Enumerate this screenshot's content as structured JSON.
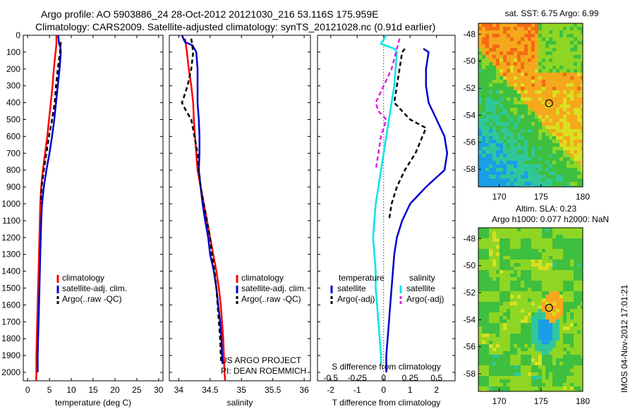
{
  "header": {
    "title_line1": "Argo profile: AO 5903886_24 28-Oct-2012 20121030_216 53.116S 175.959E",
    "title_line2": "Climatology: CARS2009. Satellite-adjusted climatology: synTS_20121028.nc (0.91d earlier)"
  },
  "credit": {
    "line1": "US ARGO PROJECT",
    "line2": "PI: DEAN ROEMMICH"
  },
  "timestamp": "IMOS 04-Nov-2012 17:01:21",
  "colors": {
    "climatology": "#ff0000",
    "satellite": "#0000cc",
    "argo": "#000000",
    "satellite_s": "#00e5e5",
    "argo_s": "#e020e0"
  },
  "chart_data": [
    {
      "type": "line",
      "xlabel": "temperature (deg C)",
      "ylabel": "",
      "xlim": [
        -1,
        31
      ],
      "ylim": [
        2050,
        0
      ],
      "xticks": [
        0,
        5,
        10,
        15,
        20,
        25,
        30
      ],
      "yticks": [
        0,
        100,
        200,
        300,
        400,
        500,
        600,
        700,
        800,
        900,
        1000,
        1100,
        1200,
        1300,
        1400,
        1500,
        1600,
        1700,
        1800,
        1900,
        2000
      ],
      "legend_position": "lower-center",
      "series": [
        {
          "name": "climatology",
          "color": "#ff0000",
          "dash": "",
          "points": [
            [
              6.6,
              0
            ],
            [
              6.6,
              50
            ],
            [
              6.4,
              100
            ],
            [
              6.0,
              200
            ],
            [
              5.7,
              300
            ],
            [
              5.3,
              400
            ],
            [
              4.9,
              500
            ],
            [
              4.5,
              600
            ],
            [
              4.0,
              700
            ],
            [
              3.5,
              800
            ],
            [
              3.1,
              900
            ],
            [
              2.9,
              1000
            ],
            [
              2.8,
              1100
            ],
            [
              2.7,
              1200
            ],
            [
              2.6,
              1300
            ],
            [
              2.5,
              1400
            ],
            [
              2.4,
              1500
            ],
            [
              2.3,
              1600
            ],
            [
              2.2,
              1700
            ],
            [
              2.1,
              1800
            ],
            [
              2.0,
              1900
            ],
            [
              2.0,
              2000
            ],
            [
              1.95,
              2050
            ]
          ]
        },
        {
          "name": "satellite-adj. clim.",
          "color": "#0000cc",
          "dash": "",
          "points": [
            [
              7.0,
              0
            ],
            [
              7.2,
              50
            ],
            [
              7.5,
              70
            ],
            [
              7.6,
              100
            ],
            [
              7.3,
              200
            ],
            [
              6.9,
              300
            ],
            [
              6.5,
              400
            ],
            [
              6.1,
              500
            ],
            [
              5.6,
              600
            ],
            [
              5.0,
              700
            ],
            [
              4.3,
              800
            ],
            [
              3.7,
              900
            ],
            [
              3.3,
              1000
            ],
            [
              3.1,
              1100
            ],
            [
              3.0,
              1200
            ],
            [
              2.9,
              1300
            ],
            [
              2.8,
              1400
            ],
            [
              2.7,
              1500
            ],
            [
              2.6,
              1600
            ],
            [
              2.5,
              1700
            ],
            [
              2.4,
              1800
            ],
            [
              2.3,
              1900
            ],
            [
              2.3,
              2000
            ]
          ]
        },
        {
          "name": "Argo(..raw -QC)",
          "color": "#000000",
          "dash": "6,4",
          "points": [
            [
              7.6,
              40
            ],
            [
              7.4,
              100
            ],
            [
              6.9,
              200
            ],
            [
              6.5,
              300
            ],
            [
              6.2,
              400
            ],
            [
              5.6,
              500
            ],
            [
              4.9,
              600
            ],
            [
              4.3,
              700
            ],
            [
              3.7,
              800
            ],
            [
              3.2,
              900
            ],
            [
              3.0,
              1000
            ]
          ]
        }
      ]
    },
    {
      "type": "line",
      "xlabel": "salinity",
      "ylabel": "",
      "xlim": [
        33.85,
        36.1
      ],
      "ylim": [
        2050,
        0
      ],
      "xticks": [
        34,
        34.5,
        35,
        35.5,
        36
      ],
      "legend_position": "lower-right",
      "series": [
        {
          "name": "climatology",
          "color": "#ff0000",
          "dash": "",
          "points": [
            [
              34.1,
              20
            ],
            [
              34.13,
              100
            ],
            [
              34.16,
              200
            ],
            [
              34.2,
              300
            ],
            [
              34.23,
              400
            ],
            [
              34.24,
              500
            ],
            [
              34.26,
              600
            ],
            [
              34.28,
              700
            ],
            [
              34.3,
              800
            ],
            [
              34.35,
              900
            ],
            [
              34.4,
              1000
            ],
            [
              34.45,
              1100
            ],
            [
              34.5,
              1200
            ],
            [
              34.55,
              1300
            ],
            [
              34.6,
              1400
            ],
            [
              34.64,
              1500
            ],
            [
              34.67,
              1600
            ],
            [
              34.69,
              1700
            ],
            [
              34.71,
              1800
            ],
            [
              34.72,
              1900
            ],
            [
              34.73,
              2000
            ],
            [
              34.74,
              2050
            ]
          ]
        },
        {
          "name": "satellite-adj. clim.",
          "color": "#0000cc",
          "dash": "",
          "points": [
            [
              34.05,
              0
            ],
            [
              34.1,
              40
            ],
            [
              34.22,
              60
            ],
            [
              34.28,
              100
            ],
            [
              34.3,
              200
            ],
            [
              34.3,
              300
            ],
            [
              34.3,
              400
            ],
            [
              34.32,
              500
            ],
            [
              34.33,
              600
            ],
            [
              34.33,
              700
            ],
            [
              34.32,
              800
            ],
            [
              34.35,
              900
            ],
            [
              34.38,
              1000
            ],
            [
              34.42,
              1100
            ],
            [
              34.47,
              1200
            ],
            [
              34.5,
              1300
            ],
            [
              34.56,
              1400
            ],
            [
              34.6,
              1500
            ],
            [
              34.63,
              1600
            ],
            [
              34.66,
              1700
            ],
            [
              34.68,
              1800
            ],
            [
              34.69,
              1900
            ],
            [
              34.7,
              1950
            ]
          ]
        },
        {
          "name": "Argo(..raw -QC)",
          "color": "#000000",
          "dash": "6,4",
          "points": [
            [
              34.2,
              20
            ],
            [
              34.23,
              100
            ],
            [
              34.2,
              200
            ],
            [
              34.14,
              300
            ],
            [
              34.07,
              380
            ],
            [
              34.05,
              400
            ],
            [
              34.12,
              450
            ],
            [
              34.2,
              500
            ],
            [
              34.25,
              600
            ],
            [
              34.3,
              700
            ],
            [
              34.32,
              800
            ],
            [
              34.35,
              900
            ],
            [
              34.4,
              1000
            ],
            [
              34.45,
              1100
            ],
            [
              34.5,
              1200
            ],
            [
              34.53,
              1300
            ],
            [
              34.57,
              1400
            ],
            [
              34.6,
              1500
            ],
            [
              34.62,
              1600
            ],
            [
              34.64,
              1700
            ],
            [
              34.66,
              1800
            ],
            [
              34.67,
              1900
            ],
            [
              34.68,
              1950
            ]
          ]
        }
      ]
    },
    {
      "type": "line",
      "xlabel": "T difference from climatology",
      "secondary_xlabel": "S difference from climatology",
      "ylabel": "",
      "xlim": [
        -2.5,
        2.7
      ],
      "ylim": [
        2050,
        0
      ],
      "xticks": [
        -2,
        -1,
        0,
        1,
        2
      ],
      "secondary_xticks": [
        "-0.5",
        "-0.25",
        "0",
        "0.25",
        "0.5"
      ],
      "legend_position": "lower-center",
      "legend_groups": [
        "temperature",
        "salinity"
      ],
      "series": [
        {
          "name": "satellite",
          "group": "temperature",
          "color": "#0000cc",
          "dash": "",
          "points": [
            [
              1.5,
              80
            ],
            [
              1.7,
              100
            ],
            [
              1.6,
              200
            ],
            [
              1.6,
              300
            ],
            [
              1.7,
              400
            ],
            [
              2.0,
              500
            ],
            [
              2.3,
              600
            ],
            [
              2.4,
              700
            ],
            [
              2.3,
              800
            ],
            [
              1.6,
              900
            ],
            [
              1.0,
              1000
            ],
            [
              0.7,
              1100
            ],
            [
              0.5,
              1200
            ],
            [
              0.4,
              1300
            ],
            [
              0.35,
              1400
            ],
            [
              0.3,
              1500
            ],
            [
              0.25,
              1600
            ],
            [
              0.2,
              1700
            ],
            [
              0.15,
              1800
            ],
            [
              0.1,
              1900
            ],
            [
              0.1,
              2000
            ]
          ]
        },
        {
          "name": "Argo(-adj)",
          "group": "temperature",
          "color": "#000000",
          "dash": "6,4",
          "points": [
            [
              0.8,
              80
            ],
            [
              0.7,
              100
            ],
            [
              0.6,
              200
            ],
            [
              0.5,
              300
            ],
            [
              0.4,
              400
            ],
            [
              1.0,
              500
            ],
            [
              1.6,
              550
            ],
            [
              1.2,
              700
            ],
            [
              0.8,
              800
            ],
            [
              0.5,
              900
            ],
            [
              0.3,
              1000
            ],
            [
              0.2,
              1100
            ]
          ]
        },
        {
          "name": "satellite",
          "group": "salinity",
          "color": "#00e5e5",
          "dash": "",
          "points": [
            [
              0.1,
              0
            ],
            [
              -0.1,
              50
            ],
            [
              0.4,
              80
            ],
            [
              0.5,
              100
            ],
            [
              0.45,
              200
            ],
            [
              0.4,
              300
            ],
            [
              0.3,
              400
            ],
            [
              0.2,
              500
            ],
            [
              0.1,
              600
            ],
            [
              0.0,
              700
            ],
            [
              -0.1,
              800
            ],
            [
              -0.2,
              900
            ],
            [
              -0.3,
              1000
            ],
            [
              -0.35,
              1100
            ],
            [
              -0.4,
              1200
            ],
            [
              -0.35,
              1300
            ],
            [
              -0.3,
              1400
            ],
            [
              -0.3,
              1500
            ],
            [
              -0.25,
              1600
            ],
            [
              -0.2,
              1700
            ],
            [
              -0.15,
              1800
            ],
            [
              -0.1,
              1900
            ],
            [
              -0.1,
              1950
            ]
          ]
        },
        {
          "name": "Argo(-adj)",
          "group": "salinity",
          "color": "#e020e0",
          "dash": "6,4",
          "points": [
            [
              0.6,
              20
            ],
            [
              0.5,
              80
            ],
            [
              0.3,
              200
            ],
            [
              0.0,
              300
            ],
            [
              -0.3,
              400
            ],
            [
              -0.2,
              450
            ],
            [
              0.1,
              500
            ],
            [
              -0.1,
              600
            ],
            [
              -0.2,
              700
            ],
            [
              -0.3,
              800
            ]
          ]
        }
      ]
    },
    {
      "type": "heatmap",
      "title": "sat. SST: 6.75 Argo: 6.99",
      "xlim": [
        167.5,
        180
      ],
      "ylim": [
        -59.3,
        -47.2
      ],
      "xticks": [
        170,
        175,
        180
      ],
      "yticks": [
        -48,
        -50,
        -52,
        -54,
        -56,
        -58
      ],
      "marker": {
        "lon": 175.959,
        "lat": -53.116
      }
    },
    {
      "type": "heatmap",
      "title": "Altim. SLA: 0.23",
      "subtitle": "Argo h1000: 0.077 h2000: NaN",
      "xlim": [
        167.5,
        180
      ],
      "ylim": [
        -59.3,
        -47.2
      ],
      "xticks": [
        170,
        175,
        180
      ],
      "yticks": [
        -48,
        -50,
        -52,
        -54,
        -56,
        -58
      ],
      "marker": {
        "lon": 175.959,
        "lat": -53.116
      }
    }
  ]
}
